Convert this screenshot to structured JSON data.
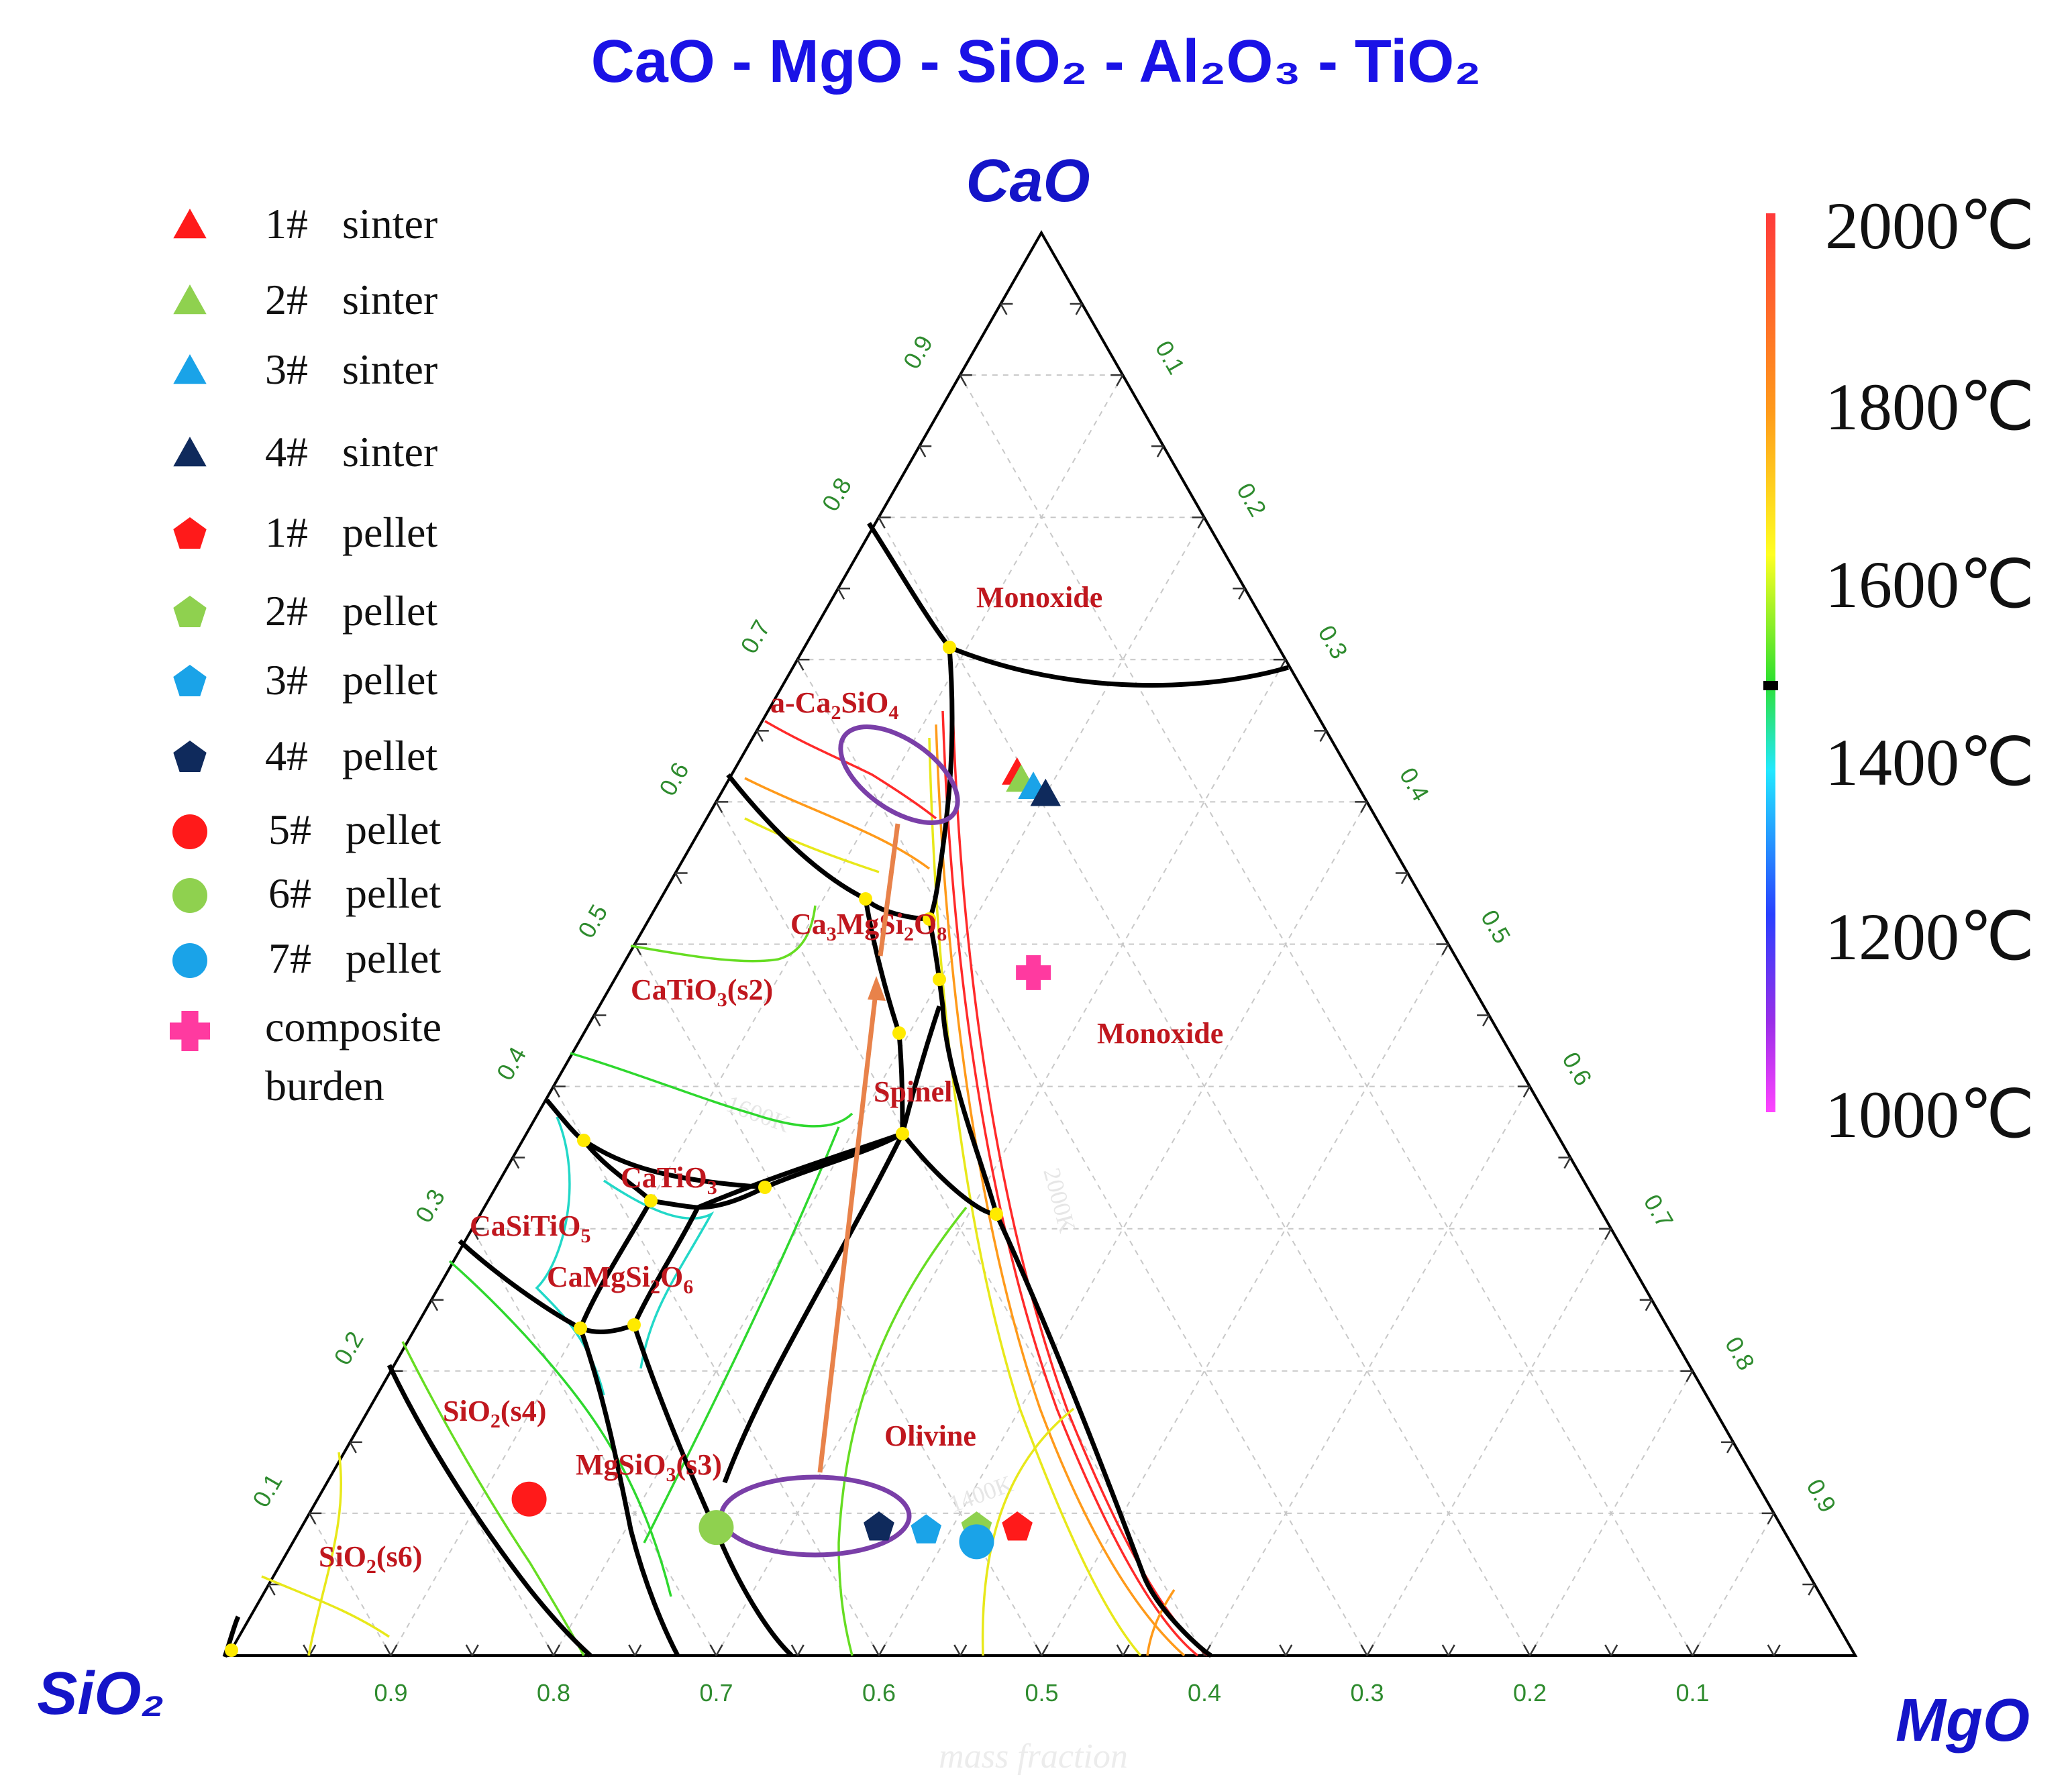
{
  "title": "CaO - MgO - SiO₂ - Al₂O₃ - TiO₂",
  "colors": {
    "title": "#1a12e6",
    "vertex": "#1414c8",
    "tick": "#2e8b2e",
    "region": "#c0171e",
    "boundary": "#000000",
    "arrow": "#e8824a",
    "ellipse": "#7a3fa8"
  },
  "chart_data": {
    "type": "ternary",
    "title": "CaO - MgO - SiO₂ - Al₂O₃ - TiO₂",
    "vertices": {
      "top": "CaO",
      "left": "SiO₂",
      "right": "MgO"
    },
    "axis_label": "mass fraction",
    "ticks": {
      "mgo_bottom": [
        "0.9",
        "0.8",
        "0.7",
        "0.6",
        "0.5",
        "0.4",
        "0.3",
        "0.2",
        "0.1"
      ],
      "cao_left": [
        "0.1",
        "0.2",
        "0.3",
        "0.4",
        "0.5",
        "0.6",
        "0.7",
        "0.8",
        "0.9"
      ],
      "sio2_right": [
        "0.1",
        "0.2",
        "0.3",
        "0.4",
        "0.5",
        "0.6",
        "0.7",
        "0.8",
        "0.9"
      ]
    },
    "regions": {
      "monoxide_top": "Monoxide",
      "ca2sio4_pre": "a-Ca",
      "ca2sio4_mid": "SiO",
      "ca3mgsi2o8_pre": "Ca",
      "ca3mgsi2o8_mid1": "MgSi",
      "ca3mgsi2o8_mid2": "O",
      "catio3_s2": "CaTiO",
      "catio3_s2_post": "(s2)",
      "monoxide_right": "Monoxide",
      "spinel": "Spinel",
      "catio3": "CaTiO",
      "casitio5": "CaSiTiO",
      "camgsi2o6_pre": "CaMgSi",
      "camgsi2o6_mid": "O",
      "sio2_s4_pre": "SiO",
      "sio2_s4_post": "(s4)",
      "mgsio3_pre": "MgSiO",
      "mgsio3_post": "(s3)",
      "olivine": "Olivine",
      "sio2_s6_pre": "SiO",
      "sio2_s6_post": "(s6)"
    },
    "subscripts": {
      "two": "2",
      "three": "3",
      "four": "4",
      "five": "5",
      "six": "6",
      "eight": "8"
    },
    "faint_labels": {
      "t1400k": "1400K",
      "t1600k": "1600K",
      "t2000k": "2000K"
    },
    "colorbar": {
      "label_2000": "2000℃",
      "label_1800": "1800℃",
      "label_1600": "1600℃",
      "label_1400": "1400℃",
      "label_1200": "1200℃",
      "label_1000": "1000℃",
      "stops": [
        "#ff3a3a",
        "#ff9a1a",
        "#ffff22",
        "#2ee02e",
        "#22e8ff",
        "#2840ff",
        "#9a2ee8",
        "#ff44ff"
      ]
    },
    "legend": [
      {
        "num": "1#",
        "word": "sinter",
        "marker": "triangle",
        "color": "#ff1a1a"
      },
      {
        "num": "2#",
        "word": "sinter",
        "marker": "triangle",
        "color": "#8fd14f"
      },
      {
        "num": "3#",
        "word": "sinter",
        "marker": "triangle",
        "color": "#1aa3e8"
      },
      {
        "num": "4#",
        "word": "sinter",
        "marker": "triangle",
        "color": "#0f2a5c"
      },
      {
        "num": "1#",
        "word": "pellet",
        "marker": "pentagon",
        "color": "#ff1a1a"
      },
      {
        "num": "2#",
        "word": "pellet",
        "marker": "pentagon",
        "color": "#8fd14f"
      },
      {
        "num": "3#",
        "word": "pellet",
        "marker": "pentagon",
        "color": "#1aa3e8"
      },
      {
        "num": "4#",
        "word": "pellet",
        "marker": "pentagon",
        "color": "#0f2a5c"
      },
      {
        "num": "5#",
        "word": "pellet",
        "marker": "circle",
        "color": "#ff1a1a"
      },
      {
        "num": "6#",
        "word": "pellet",
        "marker": "circle",
        "color": "#8fd14f"
      },
      {
        "num": "7#",
        "word": "pellet",
        "marker": "circle",
        "color": "#1aa3e8"
      },
      {
        "line1": "composite",
        "line2": "burden",
        "marker": "cross",
        "color": "#ff3aa0"
      }
    ],
    "points": [
      {
        "name": "1# sinter",
        "marker": "triangle",
        "color": "#ff1a1a",
        "CaO": 0.62,
        "MgO": 0.175,
        "SiO2": 0.205
      },
      {
        "name": "2# sinter",
        "marker": "triangle",
        "color": "#8fd14f",
        "CaO": 0.615,
        "MgO": 0.18,
        "SiO2": 0.205
      },
      {
        "name": "3# sinter",
        "marker": "triangle",
        "color": "#1aa3e8",
        "CaO": 0.61,
        "MgO": 0.19,
        "SiO2": 0.2
      },
      {
        "name": "4# sinter",
        "marker": "triangle",
        "color": "#0f2a5c",
        "CaO": 0.605,
        "MgO": 0.2,
        "SiO2": 0.195
      },
      {
        "name": "1# pellet",
        "marker": "pentagon",
        "color": "#ff1a1a",
        "CaO": 0.09,
        "MgO": 0.44,
        "SiO2": 0.47
      },
      {
        "name": "2# pellet",
        "marker": "pentagon",
        "color": "#8fd14f",
        "CaO": 0.09,
        "MgO": 0.415,
        "SiO2": 0.495
      },
      {
        "name": "3# pellet",
        "marker": "pentagon",
        "color": "#1aa3e8",
        "CaO": 0.088,
        "MgO": 0.385,
        "SiO2": 0.527
      },
      {
        "name": "4# pellet",
        "marker": "pentagon",
        "color": "#0f2a5c",
        "CaO": 0.09,
        "MgO": 0.355,
        "SiO2": 0.555
      },
      {
        "name": "5# pellet",
        "marker": "circle",
        "color": "#ff1a1a",
        "CaO": 0.11,
        "MgO": 0.13,
        "SiO2": 0.76
      },
      {
        "name": "6# pellet",
        "marker": "circle",
        "color": "#8fd14f",
        "CaO": 0.09,
        "MgO": 0.255,
        "SiO2": 0.655
      },
      {
        "name": "7# pellet",
        "marker": "circle",
        "color": "#1aa3e8",
        "CaO": 0.08,
        "MgO": 0.42,
        "SiO2": 0.5
      },
      {
        "name": "composite burden",
        "marker": "cross",
        "color": "#ff3aa0",
        "CaO": 0.48,
        "MgO": 0.255,
        "SiO2": 0.265
      }
    ]
  }
}
